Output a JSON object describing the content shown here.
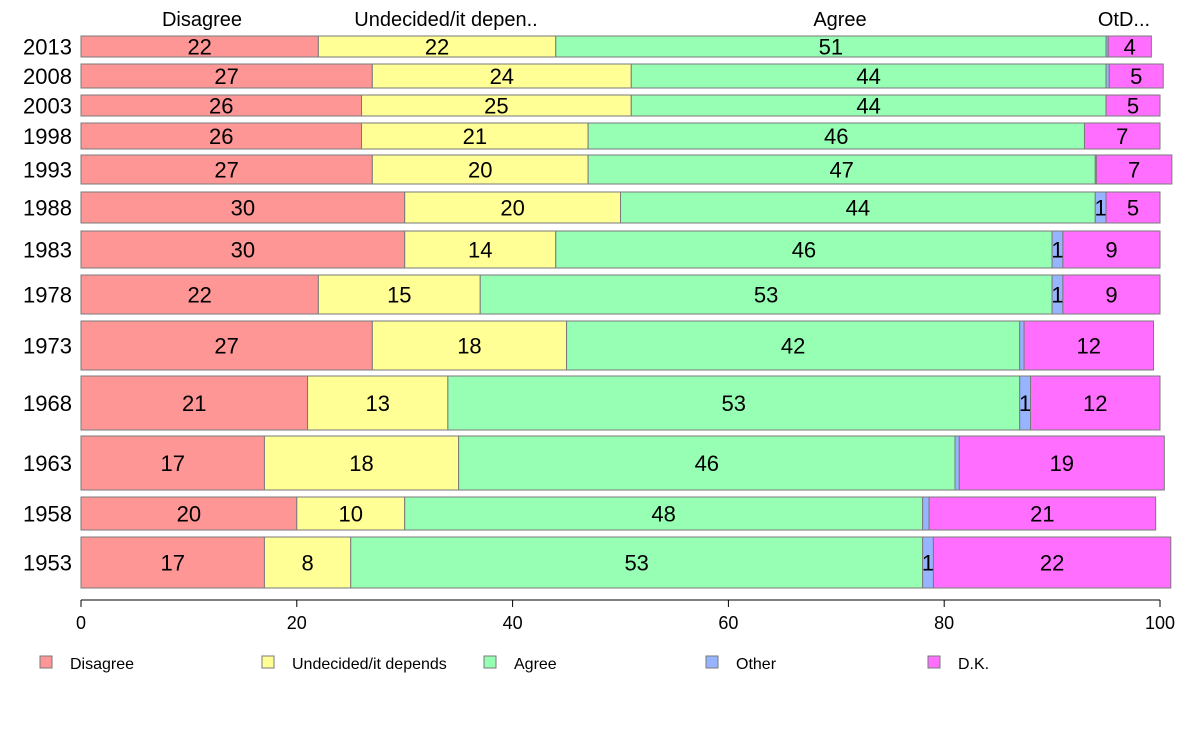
{
  "chart_data": {
    "type": "bar",
    "orientation": "horizontal",
    "stacked": true,
    "categories": [
      "2013",
      "2008",
      "2003",
      "1998",
      "1993",
      "1988",
      "1983",
      "1978",
      "1973",
      "1968",
      "1963",
      "1958",
      "1953"
    ],
    "series": [
      {
        "name": "Disagree",
        "color": "#ff9696",
        "values": [
          22,
          27,
          26,
          26,
          27,
          30,
          30,
          22,
          27,
          21,
          17,
          20,
          17
        ]
      },
      {
        "name": "Undecided/it depends",
        "color": "#ffff96",
        "values": [
          22,
          24,
          25,
          21,
          20,
          20,
          14,
          15,
          18,
          13,
          18,
          10,
          8
        ]
      },
      {
        "name": "Agree",
        "color": "#96ffb4",
        "values": [
          51,
          44,
          44,
          46,
          47,
          44,
          46,
          53,
          42,
          53,
          46,
          48,
          53
        ]
      },
      {
        "name": "Other",
        "color": "#96b4ff",
        "values": [
          0.2,
          0.3,
          0,
          0,
          0.1,
          1,
          1,
          1,
          0.4,
          1,
          0.4,
          0.6,
          1
        ]
      },
      {
        "name": "D.K.",
        "color": "#ff6eff",
        "values": [
          4,
          5,
          5,
          7,
          7,
          5,
          9,
          9,
          12,
          12,
          19,
          21,
          22
        ]
      }
    ],
    "bar_labels": [
      [
        "22",
        "22",
        "51",
        "",
        "4"
      ],
      [
        "27",
        "24",
        "44",
        "",
        "5"
      ],
      [
        "26",
        "25",
        "44",
        "",
        "5"
      ],
      [
        "26",
        "21",
        "46",
        "",
        "7"
      ],
      [
        "27",
        "20",
        "47",
        "",
        "7"
      ],
      [
        "30",
        "20",
        "44",
        "1",
        "5"
      ],
      [
        "30",
        "14",
        "46",
        "1",
        "9"
      ],
      [
        "22",
        "15",
        "53",
        "1",
        "9"
      ],
      [
        "27",
        "18",
        "42",
        "",
        "12"
      ],
      [
        "21",
        "13",
        "53",
        "1",
        "12"
      ],
      [
        "17",
        "18",
        "46",
        "",
        "19"
      ],
      [
        "20",
        "10",
        "48",
        "",
        "21"
      ],
      [
        "17",
        "8",
        "53",
        "1",
        "22"
      ]
    ],
    "column_headers": [
      "Disagree",
      "Undecided/it depen..",
      "Agree",
      "",
      "OtD..."
    ],
    "xlim": [
      0,
      100
    ],
    "xticks": [
      "0",
      "20",
      "40",
      "60",
      "80",
      "100"
    ],
    "legend": [
      "Disagree",
      "Undecided/it depends",
      "Agree",
      "Other",
      "D.K."
    ],
    "legend_position": "bottom"
  }
}
